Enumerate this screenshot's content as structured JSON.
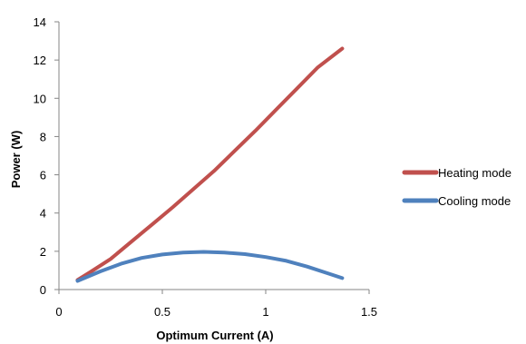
{
  "chart_data": {
    "type": "line",
    "xlabel": "Optimum Current (A)",
    "ylabel": "Power  (W)",
    "xlim": [
      0,
      1.5
    ],
    "ylim": [
      0,
      14
    ],
    "x_ticks": [
      0,
      0.5,
      1,
      1.5
    ],
    "x_tick_labels": [
      "0",
      "0.5",
      "1",
      "1.5"
    ],
    "y_ticks": [
      0,
      2,
      4,
      6,
      8,
      10,
      12,
      14
    ],
    "y_tick_labels": [
      "0",
      "2",
      "4",
      "6",
      "8",
      "10",
      "12",
      "14"
    ],
    "grid": false,
    "legend_position": "right",
    "series": [
      {
        "name": "Heating mode",
        "color": "#c0504d",
        "x": [
          0.09,
          0.15,
          0.25,
          0.35,
          0.45,
          0.55,
          0.65,
          0.75,
          0.85,
          0.95,
          1.05,
          1.15,
          1.25,
          1.37
        ],
        "y": [
          0.5,
          0.9,
          1.6,
          2.5,
          3.4,
          4.3,
          5.25,
          6.2,
          7.25,
          8.3,
          9.4,
          10.5,
          11.6,
          12.6
        ]
      },
      {
        "name": "Cooling mode",
        "color": "#4f81bd",
        "x": [
          0.09,
          0.2,
          0.3,
          0.4,
          0.5,
          0.6,
          0.7,
          0.8,
          0.9,
          1.0,
          1.1,
          1.2,
          1.3,
          1.37
        ],
        "y": [
          0.45,
          0.95,
          1.35,
          1.65,
          1.83,
          1.93,
          1.97,
          1.93,
          1.85,
          1.7,
          1.5,
          1.2,
          0.85,
          0.6
        ]
      }
    ]
  }
}
